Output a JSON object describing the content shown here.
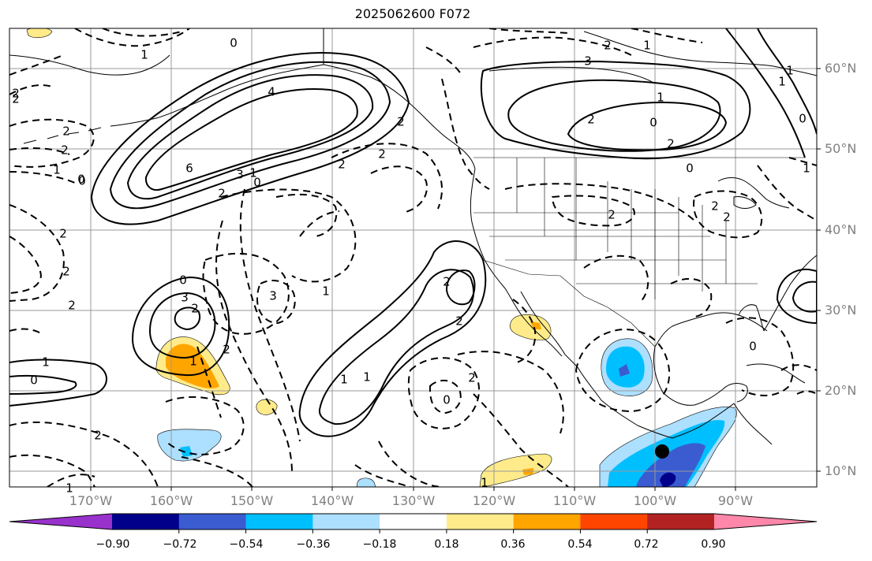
{
  "title": "2025062600 F072",
  "lat_labels": [
    "60°N",
    "50°N",
    "40°N",
    "30°N",
    "20°N",
    "10°N"
  ],
  "lon_labels": [
    "170°W",
    "160°W",
    "150°W",
    "140°W",
    "130°W",
    "120°W",
    "110°W",
    "100°W",
    "90°W"
  ],
  "colorbar": {
    "colors": [
      "#9932CC",
      "#00008B",
      "#3A5CD0",
      "#00BFFF",
      "#ADDFFF",
      "#FFFFFF",
      "#FFEB8A",
      "#FFA500",
      "#FF4500",
      "#B22222",
      "#FF88AA"
    ],
    "ticks": [
      "−0.90",
      "−0.72",
      "−0.54",
      "−0.36",
      "−0.18",
      "0.18",
      "0.36",
      "0.54",
      "0.72",
      "0.90"
    ]
  },
  "contour_labels": [
    "0",
    "1",
    "4",
    "6",
    "3",
    "2",
    "2",
    "2",
    "1",
    "0",
    "2",
    "2",
    "2",
    "3",
    "1",
    "2",
    "0",
    "3",
    "2",
    "1",
    "2",
    "1",
    "0",
    "2",
    "2",
    "1",
    "1",
    "2",
    "0",
    "2",
    "1",
    "1",
    "0",
    "1",
    "0",
    "2",
    "2",
    "2",
    "2",
    "2",
    "1",
    "1",
    "0",
    "0",
    "1",
    "1",
    "2",
    "3",
    "2",
    "2",
    "2",
    "2",
    "1",
    "0",
    "0"
  ]
}
